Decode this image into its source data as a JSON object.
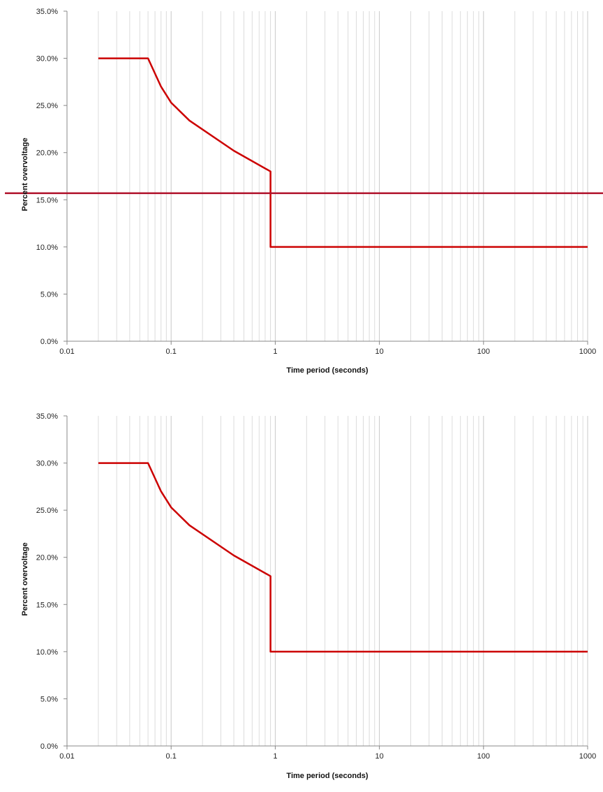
{
  "chart_data": [
    {
      "type": "line",
      "xlabel": "Time period (seconds)",
      "ylabel": "Percent overvoltage",
      "xscale": "log",
      "xlim": [
        0.01,
        1000
      ],
      "ylim": [
        0,
        35
      ],
      "x_ticks": [
        "0.01",
        "0.1",
        "1",
        "10",
        "100",
        "1000"
      ],
      "y_ticks": [
        "0.0%",
        "5.0%",
        "10.0%",
        "15.0%",
        "20.0%",
        "25.0%",
        "30.0%",
        "35.0%"
      ],
      "grid": true,
      "colors": {
        "series": "#cc0000",
        "reference": "#b0102a"
      },
      "series": [
        {
          "x": [
            0.02,
            0.06,
            0.08,
            0.1,
            0.15,
            0.4,
            0.9,
            0.9,
            1000
          ],
          "y": [
            30,
            30,
            27,
            25.3,
            23.4,
            20.2,
            18,
            10,
            10
          ]
        }
      ],
      "reference_line": {
        "y": 15.7
      }
    },
    {
      "type": "line",
      "xlabel": "Time period (seconds)",
      "ylabel": "Percent overvoltage",
      "xscale": "log",
      "xlim": [
        0.01,
        1000
      ],
      "ylim": [
        0,
        35
      ],
      "x_ticks": [
        "0.01",
        "0.1",
        "1",
        "10",
        "100",
        "1000"
      ],
      "y_ticks": [
        "0.0%",
        "5.0%",
        "10.0%",
        "15.0%",
        "20.0%",
        "25.0%",
        "30.0%",
        "35.0%"
      ],
      "grid": true,
      "colors": {
        "series": "#cc0000"
      },
      "series": [
        {
          "x": [
            0.02,
            0.06,
            0.08,
            0.1,
            0.15,
            0.4,
            0.9,
            0.9,
            1000
          ],
          "y": [
            30,
            30,
            27,
            25.3,
            23.4,
            20.2,
            18,
            10,
            10
          ]
        }
      ]
    }
  ]
}
